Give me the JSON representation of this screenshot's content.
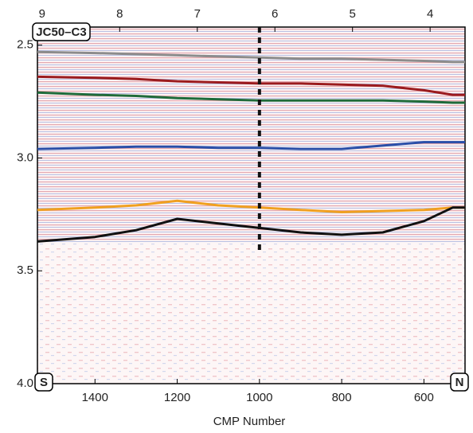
{
  "chart_data": {
    "type": "line",
    "title": "JC50–C3",
    "left_label": "S",
    "right_label": "N",
    "xlabel": "CMP Number",
    "x": [
      1540,
      1400,
      1300,
      1200,
      1100,
      1000,
      900,
      800,
      700,
      600,
      530,
      500
    ],
    "series": [
      {
        "color": "#8c8c8c",
        "values": [
          2.53,
          2.535,
          2.54,
          2.545,
          2.55,
          2.555,
          2.56,
          2.56,
          2.565,
          2.57,
          2.575,
          2.575
        ]
      },
      {
        "color": "#9b1b1e",
        "values": [
          2.64,
          2.645,
          2.65,
          2.66,
          2.665,
          2.67,
          2.67,
          2.675,
          2.68,
          2.7,
          2.72,
          2.72
        ]
      },
      {
        "color": "#1f6b3a",
        "values": [
          2.71,
          2.72,
          2.725,
          2.735,
          2.74,
          2.745,
          2.745,
          2.745,
          2.745,
          2.75,
          2.755,
          2.755
        ]
      },
      {
        "color": "#2a4fa8",
        "values": [
          2.96,
          2.955,
          2.95,
          2.95,
          2.955,
          2.955,
          2.96,
          2.96,
          2.945,
          2.93,
          2.93,
          2.93
        ]
      },
      {
        "color": "#f0a020",
        "values": [
          3.23,
          3.22,
          3.21,
          3.19,
          3.21,
          3.22,
          3.23,
          3.24,
          3.235,
          3.23,
          3.22,
          3.22
        ]
      },
      {
        "color": "#111111",
        "values": [
          3.37,
          3.35,
          3.32,
          3.27,
          3.29,
          3.31,
          3.33,
          3.34,
          3.33,
          3.28,
          3.22,
          3.22
        ]
      }
    ],
    "marker_line": {
      "x": 1000,
      "y": [
        2.42,
        3.42
      ]
    },
    "xlim": [
      1540,
      500
    ],
    "xticks": [
      1400,
      1200,
      1000,
      800,
      600
    ],
    "x2lim": [
      9.06,
      3.55
    ],
    "x2ticks": [
      9,
      8,
      7,
      6,
      5,
      4
    ],
    "ylim": [
      4.0,
      2.42
    ],
    "yticks": [
      {
        "value": 2.5,
        "label": "2.5"
      },
      {
        "value": 3.0,
        "label": "3.0"
      },
      {
        "value": 3.5,
        "label": "3.5"
      },
      {
        "value": 4.0,
        "label": "4.0"
      }
    ]
  }
}
